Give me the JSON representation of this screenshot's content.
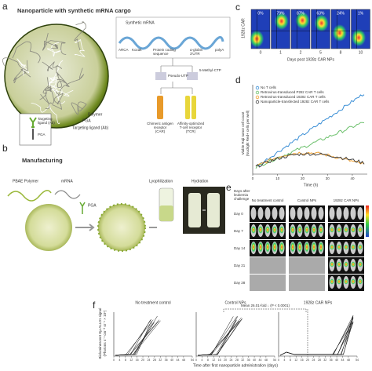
{
  "a": {
    "letter": "a",
    "title": "Nanoparticle with synthetic mRNA cargo",
    "mrna": "Synthetic mRNA",
    "arca": "ARCA",
    "kozak": "Kozak",
    "coding": [
      "Protein coding",
      "sequence"
    ],
    "utr": [
      "α-globin",
      "3′UTR"
    ],
    "polya": "polyA",
    "pseudo": "Pseudo-UTP",
    "methyl": "5-Methyl-CTP",
    "polymer": "Polymer",
    "pga": "PGA",
    "ligand": "Targeting ligand (Ab)",
    "ligand_inset": [
      "Targeting",
      "ligand (Ab)"
    ],
    "pga_inset": "PGA",
    "car": [
      "Chimeric antigen",
      "receptor",
      "(CAR)"
    ],
    "tcr": [
      "Affinity-optimized",
      "T-cell receptor",
      "(TCR)"
    ]
  },
  "b": {
    "letter": "b",
    "title": "Manufacturing",
    "pbae": "PBAE Polymer",
    "mrna": "mRNA",
    "pga": "PGA",
    "lyo": "Lyophilization",
    "hyd": "Hydration"
  },
  "c": {
    "letter": "c",
    "ylabel": "1928z CAR",
    "xlabel": "Days post 1928z CAR NPs",
    "percents": [
      "0%",
      "79%",
      "87%",
      "63%",
      "24%",
      "1%"
    ],
    "days": [
      0,
      1,
      2,
      5,
      8,
      10
    ]
  },
  "d": {
    "letter": "d",
    "legend": [
      "No T cells",
      "Retrovirus-transduced P28z CAR T cells",
      "Retrovirus-transduced 1928z CAR T cells",
      "Nanoparticle-transfected 1928z CAR T cells"
    ],
    "ylabel": [
      "Viable Raji tumor cell count",
      "(Nuclight Red+ cells per well)"
    ],
    "xlabel": "Time (h)",
    "xticks": [
      0,
      10,
      20,
      30,
      40
    ]
  },
  "e": {
    "letter": "e",
    "rowhead": [
      "Days after",
      "leukemia",
      "challenge"
    ],
    "groups": [
      "No treatment control",
      "Control NPs",
      "1928z CAR NPs"
    ],
    "days": [
      "Day 0",
      "Day 7",
      "Day 14",
      "Day 21",
      "Day 28"
    ]
  },
  "f": {
    "letter": "f",
    "groups": [
      "No treatment control",
      "Control NPs",
      "1928z CAR NPs"
    ],
    "annotation": "Mean 26.01-fold ↓ (P < 0.0001)",
    "ylabel": [
      "Bioluminescent Eμ-ALL01 signal",
      "(Photons s⁻¹ cm⁻² sr⁻¹ × 10⁶)"
    ],
    "xlabel": "Time after first nanoparticle administration (days)",
    "xticks": [
      0,
      4,
      8,
      12,
      16,
      20,
      24,
      28,
      32,
      36,
      40,
      44,
      48,
      54
    ]
  }
}
